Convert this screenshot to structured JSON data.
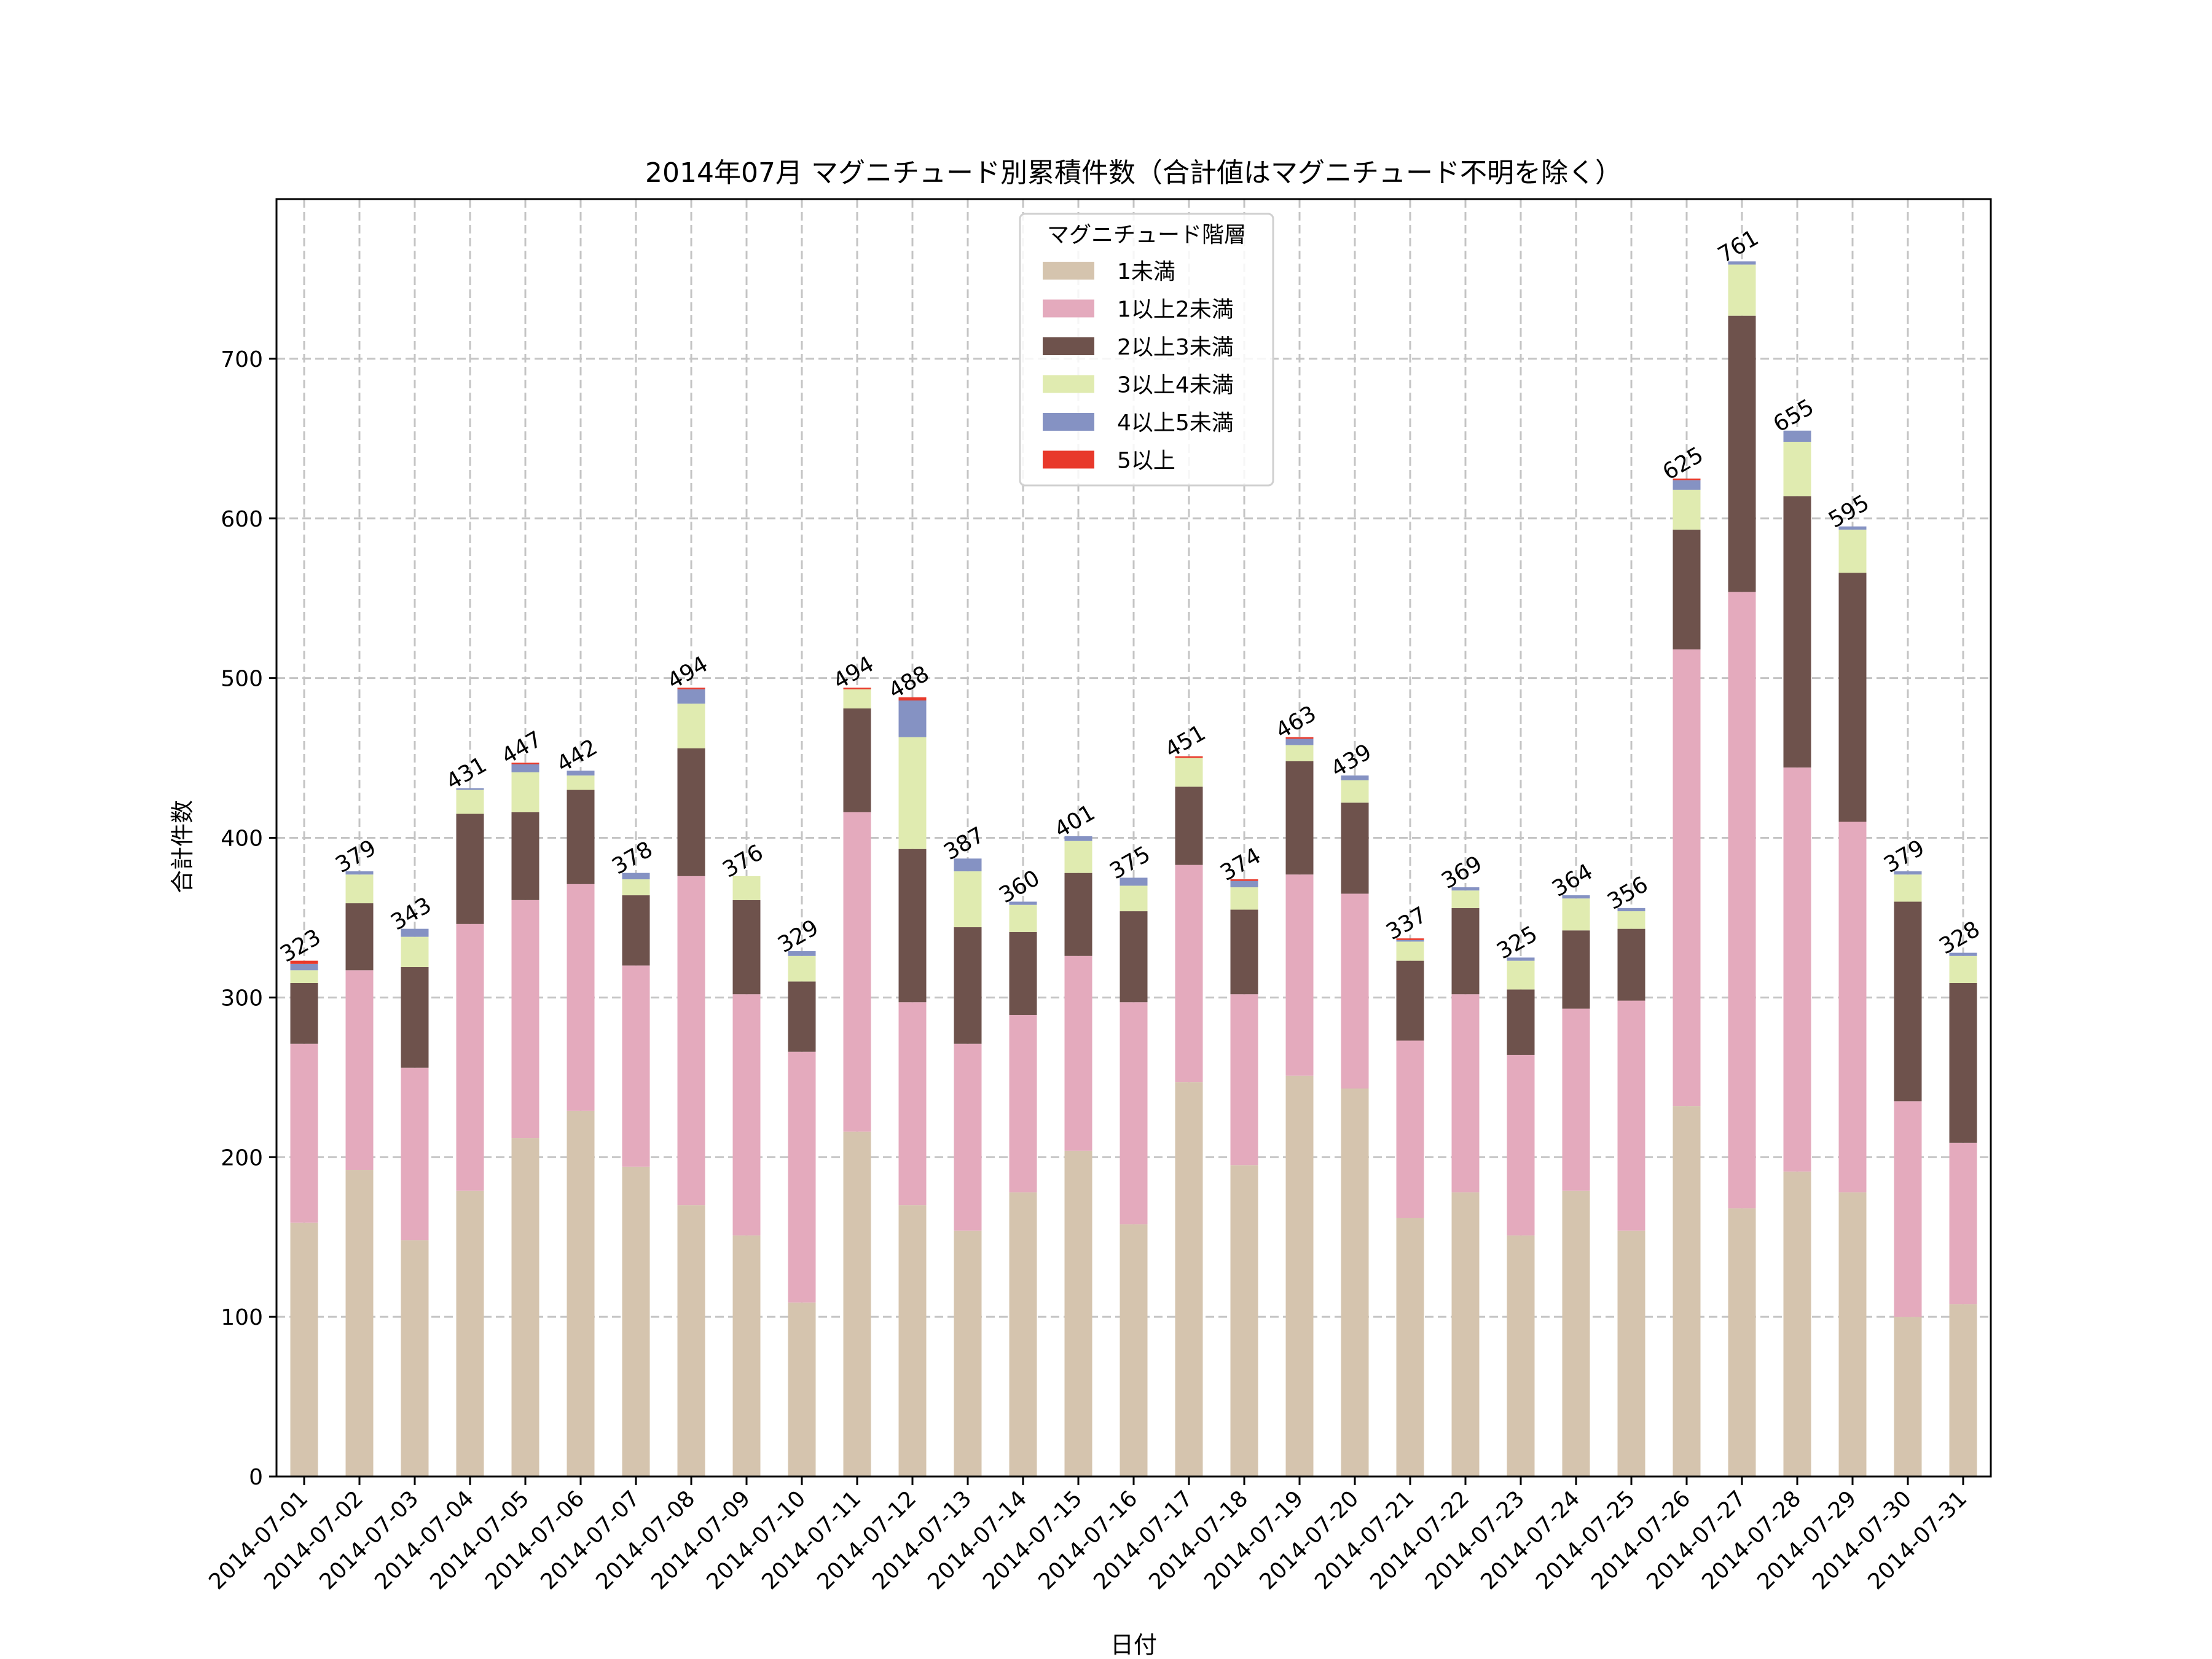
{
  "chart_data": {
    "type": "bar",
    "stacked": true,
    "title": "2014年07月 マグニチュード別累積件数（合計値はマグニチュード不明を除く）",
    "xlabel": "日付",
    "ylabel": "合計件数",
    "ylim": [
      0,
      800
    ],
    "yticks": [
      0,
      100,
      200,
      300,
      400,
      500,
      600,
      700
    ],
    "grid": true,
    "legend": {
      "title": "マグニチュード階層",
      "placement": "top-center"
    },
    "categories": [
      "2014-07-01",
      "2014-07-02",
      "2014-07-03",
      "2014-07-04",
      "2014-07-05",
      "2014-07-06",
      "2014-07-07",
      "2014-07-08",
      "2014-07-09",
      "2014-07-10",
      "2014-07-11",
      "2014-07-12",
      "2014-07-13",
      "2014-07-14",
      "2014-07-15",
      "2014-07-16",
      "2014-07-17",
      "2014-07-18",
      "2014-07-19",
      "2014-07-20",
      "2014-07-21",
      "2014-07-22",
      "2014-07-23",
      "2014-07-24",
      "2014-07-25",
      "2014-07-26",
      "2014-07-27",
      "2014-07-28",
      "2014-07-29",
      "2014-07-30",
      "2014-07-31"
    ],
    "series": [
      {
        "name": "1未満",
        "color": "#d5c4ae",
        "values": [
          159,
          192,
          148,
          179,
          212,
          229,
          194,
          170,
          151,
          109,
          216,
          170,
          154,
          178,
          204,
          158,
          247,
          195,
          251,
          243,
          162,
          178,
          151,
          179,
          154,
          232,
          168,
          191,
          178,
          100,
          108
        ]
      },
      {
        "name": "1以上2未満",
        "color": "#e4aabd",
        "values": [
          112,
          125,
          108,
          167,
          149,
          142,
          126,
          206,
          151,
          157,
          200,
          127,
          117,
          111,
          122,
          139,
          136,
          107,
          126,
          122,
          111,
          124,
          113,
          114,
          144,
          286,
          386,
          253,
          232,
          135,
          101
        ]
      },
      {
        "name": "2以上3未満",
        "color": "#6e524c",
        "values": [
          38,
          42,
          63,
          69,
          55,
          59,
          44,
          80,
          59,
          44,
          65,
          96,
          73,
          52,
          52,
          57,
          49,
          53,
          71,
          57,
          50,
          54,
          41,
          49,
          45,
          75,
          173,
          170,
          156,
          125,
          100
        ]
      },
      {
        "name": "3以上4未満",
        "color": "#e0ebb0",
        "values": [
          8,
          18,
          19,
          15,
          25,
          9,
          10,
          28,
          15,
          16,
          12,
          70,
          35,
          17,
          20,
          16,
          18,
          14,
          10,
          14,
          12,
          11,
          18,
          20,
          11,
          25,
          32,
          34,
          27,
          17,
          17
        ]
      },
      {
        "name": "4以上5未満",
        "color": "#8592c3",
        "values": [
          4,
          2,
          5,
          1,
          5,
          3,
          4,
          9,
          0,
          3,
          0,
          23,
          8,
          2,
          3,
          5,
          0,
          4,
          4,
          3,
          1,
          2,
          2,
          2,
          2,
          6,
          2,
          7,
          2,
          2,
          2
        ]
      },
      {
        "name": "5以上",
        "color": "#e8392b",
        "values": [
          2,
          0,
          0,
          0,
          1,
          0,
          0,
          1,
          0,
          0,
          1,
          2,
          0,
          0,
          0,
          0,
          1,
          1,
          1,
          0,
          1,
          0,
          0,
          0,
          0,
          1,
          0,
          0,
          0,
          0,
          0
        ]
      }
    ],
    "totals": [
      323,
      379,
      343,
      431,
      447,
      442,
      378,
      494,
      376,
      329,
      494,
      488,
      387,
      360,
      401,
      375,
      451,
      374,
      463,
      439,
      337,
      369,
      325,
      364,
      356,
      625,
      761,
      655,
      595,
      379,
      328
    ]
  }
}
